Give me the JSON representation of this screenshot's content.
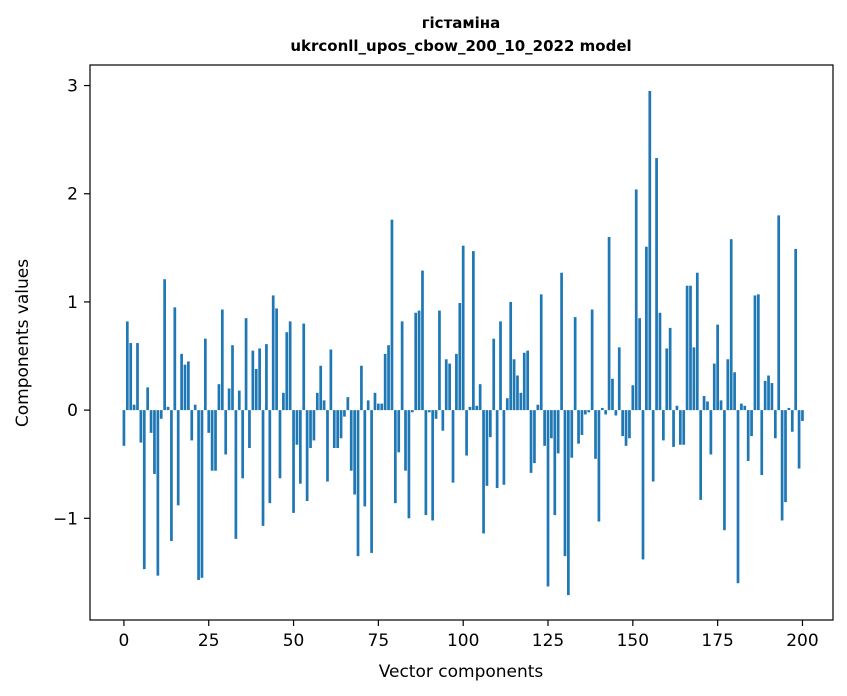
{
  "chart_data": {
    "type": "bar",
    "title": "гістаміна",
    "subtitle": "ukrconll_upos_cbow_200_10_2022 model",
    "xlabel": "Vector components",
    "ylabel": "Components values",
    "xlim": [
      -10,
      209
    ],
    "ylim": [
      -1.94,
      3.19
    ],
    "xticks": [
      0,
      25,
      50,
      75,
      100,
      125,
      150,
      175,
      200
    ],
    "yticks": [
      -1,
      0,
      1,
      2,
      3
    ],
    "ytick_labels": [
      "−1",
      "0",
      "1",
      "2",
      "3"
    ],
    "bar_color": "#1f77b4",
    "grid": false,
    "values": [
      -0.33,
      0.82,
      0.62,
      0.05,
      0.62,
      -0.3,
      -1.47,
      0.21,
      -0.21,
      -0.59,
      -1.53,
      -0.08,
      1.21,
      0.03,
      -1.21,
      0.95,
      -0.88,
      0.52,
      0.42,
      0.45,
      -0.28,
      0.05,
      -1.57,
      -1.55,
      0.66,
      -0.21,
      -0.56,
      -0.56,
      0.24,
      0.93,
      -0.41,
      0.2,
      0.6,
      -1.19,
      0.18,
      -0.63,
      0.85,
      -0.35,
      0.55,
      0.38,
      0.57,
      -1.07,
      0.61,
      -0.86,
      1.06,
      0.94,
      -0.63,
      0.16,
      0.72,
      0.82,
      -0.95,
      -0.32,
      -0.68,
      0.8,
      -0.84,
      -0.35,
      -0.28,
      0.16,
      0.41,
      0.09,
      -0.66,
      0.56,
      -0.35,
      -0.35,
      -0.26,
      -0.06,
      0.12,
      -0.56,
      -0.78,
      -1.35,
      0.41,
      -0.89,
      0.09,
      -1.32,
      0.16,
      0.06,
      0.06,
      0.52,
      0.6,
      1.76,
      -0.86,
      -0.39,
      0.82,
      -0.56,
      -1.0,
      -0.02,
      0.9,
      0.92,
      1.29,
      -0.97,
      -0.02,
      -1.02,
      -0.08,
      0.92,
      -0.19,
      0.47,
      0.43,
      -0.67,
      0.52,
      0.99,
      1.52,
      -0.42,
      0.03,
      1.47,
      0.04,
      0.24,
      -1.14,
      -0.7,
      -0.25,
      0.66,
      -0.72,
      0.82,
      -0.69,
      0.11,
      1.0,
      0.47,
      0.32,
      0.16,
      0.53,
      0.55,
      -0.58,
      -0.49,
      0.05,
      1.07,
      -0.33,
      -1.63,
      -0.26,
      -0.97,
      -0.4,
      1.27,
      -1.35,
      -1.71,
      -0.44,
      0.86,
      -0.31,
      -0.23,
      -0.04,
      -0.02,
      0.93,
      -0.45,
      -1.03,
      0.02,
      -0.04,
      1.6,
      0.29,
      -0.05,
      0.58,
      -0.24,
      -0.33,
      -0.26,
      0.23,
      2.04,
      0.85,
      -1.38,
      1.51,
      2.95,
      -0.66,
      2.33,
      0.9,
      -0.28,
      0.57,
      0.76,
      -0.34,
      0.04,
      -0.32,
      -0.32,
      1.15,
      1.15,
      0.58,
      1.27,
      -0.83,
      0.13,
      0.08,
      -0.41,
      0.43,
      0.79,
      0.09,
      -1.11,
      0.47,
      1.58,
      0.35,
      -1.6,
      0.06,
      0.04,
      -0.47,
      -0.24,
      1.06,
      1.07,
      -0.6,
      0.27,
      0.32,
      0.25,
      -0.26,
      1.8,
      -1.02,
      -0.85,
      0.02,
      -0.2,
      1.49,
      -0.54,
      -0.1
    ]
  }
}
